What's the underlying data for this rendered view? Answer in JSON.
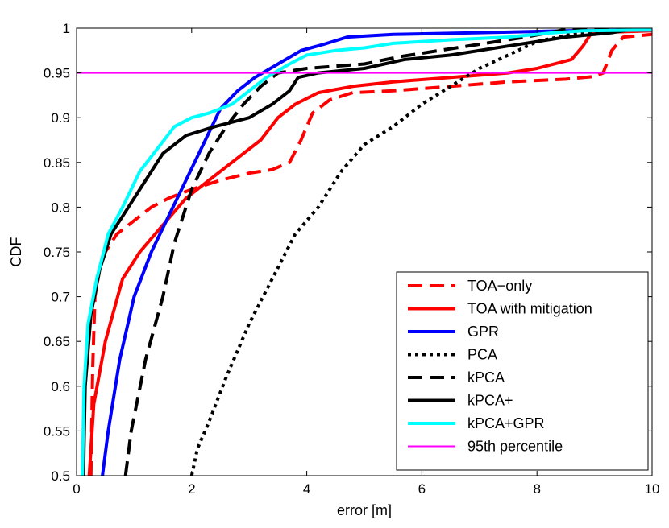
{
  "chart_data": {
    "type": "line",
    "title": "",
    "xlabel": "error [m]",
    "ylabel": "CDF",
    "xlim": [
      0,
      10
    ],
    "ylim": [
      0.5,
      1.0
    ],
    "xticks": [
      "0",
      "2",
      "4",
      "6",
      "8",
      "10"
    ],
    "yticks": [
      "0.5",
      "0.55",
      "0.6",
      "0.65",
      "0.7",
      "0.75",
      "0.8",
      "0.85",
      "0.9",
      "0.95",
      "1"
    ],
    "grid": false,
    "legend_position": "bottom-right",
    "reference_lines": [
      {
        "name": "95th percentile",
        "y": 0.95,
        "color": "#ff00ff"
      }
    ],
    "series": [
      {
        "name": "TOA−only",
        "color": "#ff0000",
        "style": "dashed",
        "width": "thick",
        "points": [
          [
            0.25,
            0.5
          ],
          [
            0.28,
            0.62
          ],
          [
            0.32,
            0.7
          ],
          [
            0.4,
            0.73
          ],
          [
            0.5,
            0.75
          ],
          [
            0.7,
            0.77
          ],
          [
            1.0,
            0.785
          ],
          [
            1.3,
            0.8
          ],
          [
            1.6,
            0.81
          ],
          [
            2.0,
            0.82
          ],
          [
            2.5,
            0.83
          ],
          [
            3.0,
            0.838
          ],
          [
            3.4,
            0.842
          ],
          [
            3.7,
            0.85
          ],
          [
            3.9,
            0.875
          ],
          [
            4.1,
            0.905
          ],
          [
            4.4,
            0.92
          ],
          [
            4.8,
            0.928
          ],
          [
            5.5,
            0.93
          ],
          [
            6.5,
            0.935
          ],
          [
            7.5,
            0.94
          ],
          [
            8.5,
            0.943
          ],
          [
            9.0,
            0.946
          ],
          [
            9.15,
            0.95
          ],
          [
            9.3,
            0.975
          ],
          [
            9.5,
            0.99
          ],
          [
            10.0,
            0.993
          ]
        ]
      },
      {
        "name": "TOA with mitigation",
        "color": "#ff0000",
        "style": "solid",
        "width": "thick",
        "points": [
          [
            0.22,
            0.5
          ],
          [
            0.3,
            0.58
          ],
          [
            0.5,
            0.65
          ],
          [
            0.8,
            0.72
          ],
          [
            1.1,
            0.75
          ],
          [
            1.5,
            0.78
          ],
          [
            1.9,
            0.81
          ],
          [
            2.3,
            0.83
          ],
          [
            2.8,
            0.855
          ],
          [
            3.2,
            0.875
          ],
          [
            3.5,
            0.9
          ],
          [
            3.8,
            0.915
          ],
          [
            4.2,
            0.928
          ],
          [
            4.8,
            0.935
          ],
          [
            5.5,
            0.94
          ],
          [
            6.5,
            0.945
          ],
          [
            7.5,
            0.95
          ],
          [
            8.0,
            0.955
          ],
          [
            8.6,
            0.965
          ],
          [
            8.8,
            0.98
          ],
          [
            8.95,
            0.995
          ],
          [
            10.0,
            0.997
          ]
        ]
      },
      {
        "name": "GPR",
        "color": "#0000ff",
        "style": "solid",
        "width": "thick",
        "points": [
          [
            0.45,
            0.5
          ],
          [
            0.55,
            0.55
          ],
          [
            0.75,
            0.63
          ],
          [
            1.0,
            0.7
          ],
          [
            1.3,
            0.75
          ],
          [
            1.6,
            0.79
          ],
          [
            1.9,
            0.83
          ],
          [
            2.2,
            0.87
          ],
          [
            2.5,
            0.91
          ],
          [
            2.8,
            0.93
          ],
          [
            3.1,
            0.945
          ],
          [
            3.5,
            0.96
          ],
          [
            3.9,
            0.975
          ],
          [
            4.3,
            0.982
          ],
          [
            4.7,
            0.99
          ],
          [
            5.5,
            0.993
          ],
          [
            7.0,
            0.995
          ],
          [
            8.5,
            0.997
          ],
          [
            10.0,
            0.998
          ]
        ]
      },
      {
        "name": "PCA",
        "color": "#000000",
        "style": "dotted",
        "width": "thick",
        "points": [
          [
            2.0,
            0.5
          ],
          [
            2.1,
            0.53
          ],
          [
            2.3,
            0.56
          ],
          [
            2.6,
            0.61
          ],
          [
            3.0,
            0.67
          ],
          [
            3.4,
            0.72
          ],
          [
            3.8,
            0.77
          ],
          [
            4.2,
            0.8
          ],
          [
            4.6,
            0.84
          ],
          [
            5.0,
            0.87
          ],
          [
            5.5,
            0.89
          ],
          [
            6.0,
            0.915
          ],
          [
            6.5,
            0.935
          ],
          [
            7.0,
            0.955
          ],
          [
            7.5,
            0.97
          ],
          [
            8.0,
            0.985
          ],
          [
            8.5,
            0.992
          ],
          [
            9.0,
            0.996
          ],
          [
            10.0,
            1.0
          ]
        ]
      },
      {
        "name": "kPCA",
        "color": "#000000",
        "style": "dashed",
        "width": "thick",
        "points": [
          [
            0.85,
            0.5
          ],
          [
            0.95,
            0.55
          ],
          [
            1.2,
            0.63
          ],
          [
            1.5,
            0.7
          ],
          [
            1.7,
            0.76
          ],
          [
            2.0,
            0.82
          ],
          [
            2.3,
            0.86
          ],
          [
            2.6,
            0.89
          ],
          [
            2.9,
            0.915
          ],
          [
            3.2,
            0.935
          ],
          [
            3.5,
            0.95
          ],
          [
            4.0,
            0.955
          ],
          [
            5.0,
            0.96
          ],
          [
            5.6,
            0.968
          ],
          [
            6.3,
            0.975
          ],
          [
            7.0,
            0.982
          ],
          [
            7.8,
            0.99
          ],
          [
            8.3,
            0.996
          ],
          [
            8.6,
            1.0
          ],
          [
            10.0,
            1.0
          ]
        ]
      },
      {
        "name": "kPCA+",
        "color": "#000000",
        "style": "solid",
        "width": "thick",
        "points": [
          [
            0.12,
            0.5
          ],
          [
            0.15,
            0.6
          ],
          [
            0.25,
            0.68
          ],
          [
            0.4,
            0.73
          ],
          [
            0.6,
            0.77
          ],
          [
            0.9,
            0.8
          ],
          [
            1.2,
            0.83
          ],
          [
            1.5,
            0.86
          ],
          [
            1.9,
            0.88
          ],
          [
            2.4,
            0.89
          ],
          [
            3.0,
            0.9
          ],
          [
            3.4,
            0.915
          ],
          [
            3.7,
            0.93
          ],
          [
            3.85,
            0.945
          ],
          [
            4.2,
            0.95
          ],
          [
            5.0,
            0.955
          ],
          [
            5.7,
            0.965
          ],
          [
            6.5,
            0.97
          ],
          [
            7.5,
            0.98
          ],
          [
            8.5,
            0.99
          ],
          [
            9.3,
            0.995
          ],
          [
            9.6,
            0.998
          ],
          [
            10.0,
            1.0
          ]
        ]
      },
      {
        "name": "kPCA+GPR",
        "color": "#00ffff",
        "style": "solid",
        "width": "thick",
        "points": [
          [
            0.1,
            0.5
          ],
          [
            0.13,
            0.6
          ],
          [
            0.2,
            0.67
          ],
          [
            0.35,
            0.72
          ],
          [
            0.55,
            0.77
          ],
          [
            0.8,
            0.8
          ],
          [
            1.1,
            0.84
          ],
          [
            1.4,
            0.865
          ],
          [
            1.7,
            0.89
          ],
          [
            2.0,
            0.9
          ],
          [
            2.3,
            0.905
          ],
          [
            2.7,
            0.915
          ],
          [
            3.0,
            0.93
          ],
          [
            3.3,
            0.945
          ],
          [
            3.7,
            0.96
          ],
          [
            4.0,
            0.97
          ],
          [
            4.5,
            0.975
          ],
          [
            5.0,
            0.978
          ],
          [
            5.5,
            0.983
          ],
          [
            6.5,
            0.987
          ],
          [
            7.5,
            0.99
          ],
          [
            8.3,
            0.995
          ],
          [
            8.8,
            0.997
          ],
          [
            10.0,
            0.998
          ]
        ]
      }
    ]
  }
}
